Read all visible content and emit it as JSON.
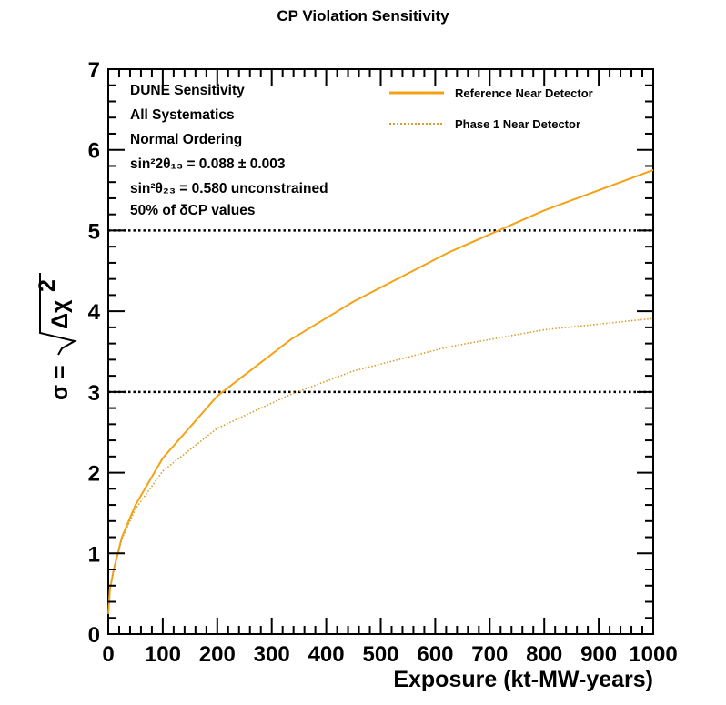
{
  "chart_data": {
    "type": "line",
    "title": "CP Violation Sensitivity",
    "xlabel": "Exposure (kt-MW-years)",
    "ylabel": "σ = √Δχ²",
    "xlim": [
      0,
      1000
    ],
    "ylim": [
      0,
      7
    ],
    "x_ticks": [
      "0",
      "100",
      "200",
      "300",
      "400",
      "500",
      "600",
      "700",
      "800",
      "900",
      "1000"
    ],
    "y_ticks": [
      "0",
      "1",
      "2",
      "3",
      "4",
      "5",
      "6",
      "7"
    ],
    "annotations": {
      "line1": "DUNE Sensitivity",
      "line2": "All Systematics",
      "line3": "Normal Ordering",
      "theta13_label": "sin²2θ₁₃ = 0.088 ± 0.003",
      "theta23_label": "sin²θ₂₃ = 0.580 unconstrained",
      "dcp_label": "50% of δCP values"
    },
    "reference_lines": [
      {
        "y": 3,
        "style": "dotted",
        "color": "#000000"
      },
      {
        "y": 5,
        "style": "dotted",
        "color": "#000000"
      }
    ],
    "series": [
      {
        "name": "Reference Near Detector",
        "style": "solid",
        "color": "#f5a114",
        "x": [
          0,
          3,
          10,
          25,
          50,
          100,
          200,
          335,
          450,
          625,
          800,
          1000
        ],
        "y": [
          0.25,
          0.55,
          0.8,
          1.2,
          1.6,
          2.18,
          2.95,
          3.65,
          4.12,
          4.73,
          5.25,
          5.75
        ]
      },
      {
        "name": "Phase 1 Near Detector",
        "style": "dotted",
        "color": "#d79e2a",
        "x": [
          0,
          3,
          10,
          25,
          50,
          100,
          200,
          335,
          450,
          625,
          800,
          1000
        ],
        "y": [
          0.25,
          0.55,
          0.8,
          1.18,
          1.55,
          2.02,
          2.55,
          2.97,
          3.26,
          3.56,
          3.77,
          3.91
        ]
      }
    ]
  }
}
